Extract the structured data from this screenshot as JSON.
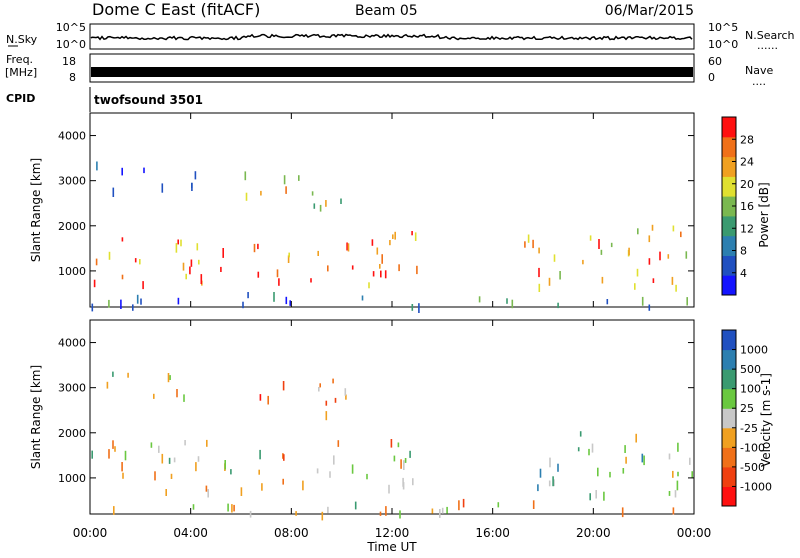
{
  "header": {
    "station": "Dome C East (fitACF)",
    "beam": "Beam 05",
    "date": "06/Mar/2015"
  },
  "strips": {
    "sky_label": "N.Sky",
    "sky_ticks": [
      "10^5",
      "10^0"
    ],
    "search_label": "N.Search",
    "search_ticks": [
      "10^5",
      "10^0"
    ],
    "freq_label": "Freq.",
    "freq_unit": "[MHz]",
    "freq_ticks": [
      "18",
      "8"
    ],
    "nave_label": "Nave",
    "nave_ticks": [
      "60",
      "0"
    ],
    "cpid_label": "CPID",
    "cpid_value": "twofsound 3501",
    "dots": "......",
    "dots_short": "...."
  },
  "panels": {
    "y_label": "Slant Range [km]",
    "x_label": "Time UT"
  },
  "colors": {
    "power": [
      "#1414ff",
      "#2050c0",
      "#2c7fb0",
      "#3a9a70",
      "#7ab850",
      "#e0e030",
      "#f0a020",
      "#f07018",
      "#ff1010"
    ],
    "velocity": [
      "#ff1010",
      "#f04010",
      "#f07018",
      "#f0a020",
      "#c8c8c8",
      "#6ac840",
      "#3a9a70",
      "#2c7fb0",
      "#2050c0"
    ]
  },
  "chart_data": [
    {
      "type": "heatmap",
      "name": "power",
      "ylabel": "Slant Range [km]",
      "xlabel": "Time UT",
      "xlim_hours": [
        0,
        24
      ],
      "ylim_km": [
        200,
        4500
      ],
      "x_ticks": [
        "00:00",
        "04:00",
        "08:00",
        "12:00",
        "16:00",
        "20:00",
        "00:00"
      ],
      "y_ticks": [
        1000,
        2000,
        3000,
        4000
      ],
      "colorbar": {
        "label": "Power [dB]",
        "ticks": [
          "4",
          "8",
          "12",
          "16",
          "20",
          "24",
          "28"
        ],
        "range": [
          0,
          30
        ]
      },
      "echo_regions": [
        {
          "t": [
            0.0,
            13.0
          ],
          "r": [
            700,
            1900
          ],
          "value": 24
        },
        {
          "t": [
            0.0,
            4.5
          ],
          "r": [
            2800,
            3400
          ],
          "value": 6
        },
        {
          "t": [
            6.0,
            10.5
          ],
          "r": [
            2400,
            3200
          ],
          "value": 18
        },
        {
          "t": [
            17.0,
            24.0
          ],
          "r": [
            600,
            2000
          ],
          "value": 22
        },
        {
          "t": [
            0.0,
            24.0
          ],
          "r": [
            200,
            500
          ],
          "value": 8
        }
      ]
    },
    {
      "type": "heatmap",
      "name": "velocity",
      "ylabel": "Slant Range [km]",
      "xlabel": "Time UT",
      "xlim_hours": [
        0,
        24
      ],
      "ylim_km": [
        200,
        4500
      ],
      "x_ticks": [
        "00:00",
        "04:00",
        "08:00",
        "12:00",
        "16:00",
        "20:00",
        "00:00"
      ],
      "y_ticks": [
        1000,
        2000,
        3000,
        4000
      ],
      "colorbar": {
        "label": "Velocity [m s-1]",
        "ticks": [
          "1000",
          "500",
          "100",
          "25",
          "-25",
          "-100",
          "-500",
          "-1000"
        ],
        "range": [
          -1000,
          1000
        ]
      },
      "echo_regions": [
        {
          "t": [
            0.0,
            13.0
          ],
          "r": [
            700,
            1900
          ],
          "value": -100
        },
        {
          "t": [
            0.0,
            4.5
          ],
          "r": [
            2800,
            3400
          ],
          "value": 0
        },
        {
          "t": [
            6.0,
            10.5
          ],
          "r": [
            2400,
            3200
          ],
          "value": -300
        },
        {
          "t": [
            17.0,
            24.0
          ],
          "r": [
            600,
            2000
          ],
          "value": 300
        },
        {
          "t": [
            0.0,
            24.0
          ],
          "r": [
            200,
            500
          ],
          "value": -100
        }
      ]
    }
  ]
}
